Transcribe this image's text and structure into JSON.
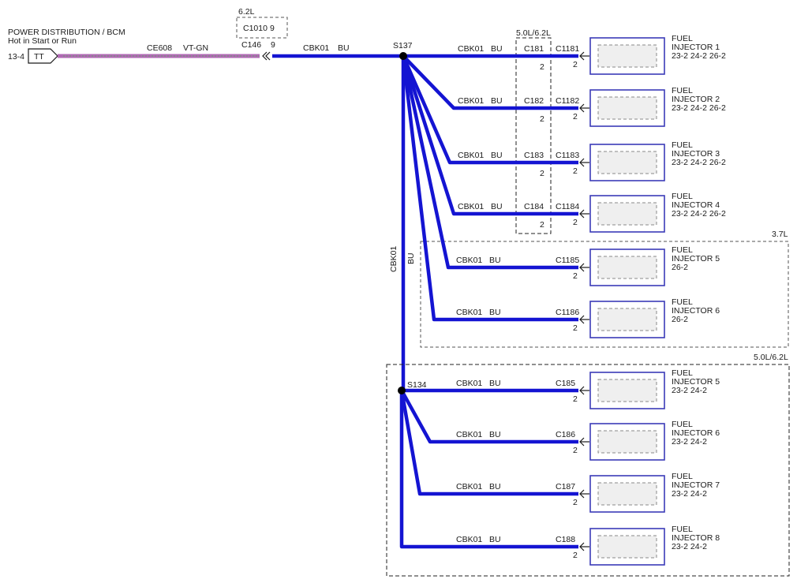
{
  "source": {
    "title": "POWER DISTRIBUTION / BCM",
    "subtitle": "Hot in Start or Run",
    "page_ref": "13-4",
    "tag": "TT",
    "circuit": "CE608",
    "color": "VT-GN"
  },
  "connector_c146": {
    "label": "C146",
    "pin": "9"
  },
  "variant_62": {
    "label": "6.2L",
    "connector": "C1010",
    "pin": "9"
  },
  "main_circuit": {
    "circuit": "CBK01",
    "color": "BU"
  },
  "vertical_circuit": {
    "circuit": "CBK01",
    "color": "BU"
  },
  "splice_s137": "S137",
  "splice_s134": "S134",
  "box_50_62_top": "5.0L/6.2L",
  "box_37": "3.7L",
  "box_50_62_bottom": "5.0L/6.2L",
  "injectors": [
    {
      "circuit": "CBK01",
      "color": "BU",
      "inline": "C181",
      "inline_pin": "2",
      "conn": "C1181",
      "pin": "2",
      "name1": "FUEL",
      "name2": "INJECTOR 1",
      "refs": "23-2   24-2    26-2"
    },
    {
      "circuit": "CBK01",
      "color": "BU",
      "inline": "C182",
      "inline_pin": "2",
      "conn": "C1182",
      "pin": "2",
      "name1": "FUEL",
      "name2": "INJECTOR 2",
      "refs": "23-2   24-2    26-2"
    },
    {
      "circuit": "CBK01",
      "color": "BU",
      "inline": "C183",
      "inline_pin": "2",
      "conn": "C1183",
      "pin": "2",
      "name1": "FUEL",
      "name2": "INJECTOR 3",
      "refs": "23-2   24-2    26-2"
    },
    {
      "circuit": "CBK01",
      "color": "BU",
      "inline": "C184",
      "inline_pin": "2",
      "conn": "C1184",
      "pin": "2",
      "name1": "FUEL",
      "name2": "INJECTOR 4",
      "refs": "23-2   24-2    26-2"
    },
    {
      "circuit": "CBK01",
      "color": "BU",
      "inline": "",
      "inline_pin": "",
      "conn": "C1185",
      "pin": "2",
      "name1": "FUEL",
      "name2": "INJECTOR 5",
      "refs": "26-2"
    },
    {
      "circuit": "CBK01",
      "color": "BU",
      "inline": "",
      "inline_pin": "",
      "conn": "C1186",
      "pin": "2",
      "name1": "FUEL",
      "name2": "INJECTOR 6",
      "refs": "26-2"
    },
    {
      "circuit": "CBK01",
      "color": "BU",
      "inline": "",
      "inline_pin": "",
      "conn": "C185",
      "pin": "2",
      "name1": "FUEL",
      "name2": "INJECTOR 5",
      "refs": "23-2   24-2"
    },
    {
      "circuit": "CBK01",
      "color": "BU",
      "inline": "",
      "inline_pin": "",
      "conn": "C186",
      "pin": "2",
      "name1": "FUEL",
      "name2": "INJECTOR 6",
      "refs": "23-2   24-2"
    },
    {
      "circuit": "CBK01",
      "color": "BU",
      "inline": "",
      "inline_pin": "",
      "conn": "C187",
      "pin": "2",
      "name1": "FUEL",
      "name2": "INJECTOR 7",
      "refs": "23-2   24-2"
    },
    {
      "circuit": "CBK01",
      "color": "BU",
      "inline": "",
      "inline_pin": "",
      "conn": "C188",
      "pin": "2",
      "name1": "FUEL",
      "name2": "INJECTOR 8",
      "refs": "23-2   24-2"
    }
  ]
}
